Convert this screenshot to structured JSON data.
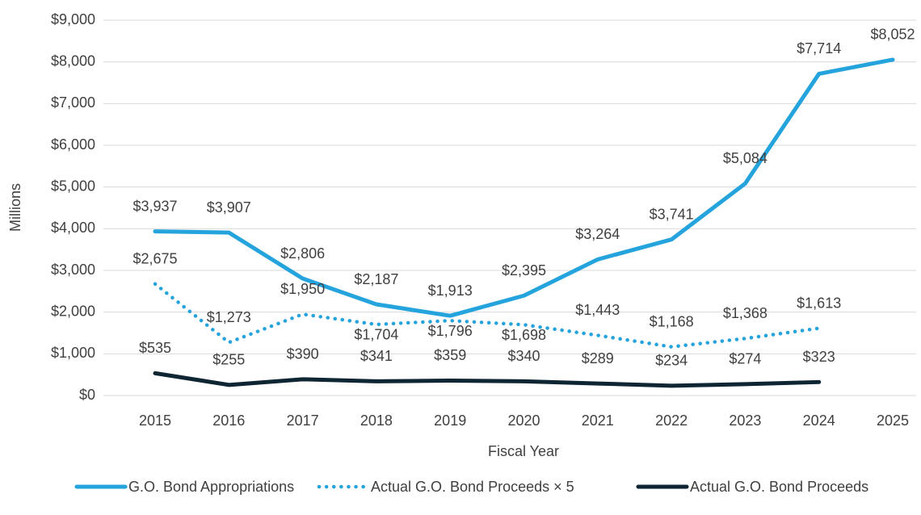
{
  "chart_data": {
    "type": "line",
    "x_label": "Fiscal Year",
    "y_label": "Millions",
    "categories": [
      "2015",
      "2016",
      "2017",
      "2018",
      "2019",
      "2020",
      "2021",
      "2022",
      "2023",
      "2024",
      "2025"
    ],
    "series": [
      {
        "name": "G.O. Bond Appropriations",
        "color": "#24a3dc",
        "dash": "solid",
        "values": [
          3937,
          3907,
          2806,
          2187,
          1913,
          2395,
          3264,
          3741,
          5084,
          7714,
          8052
        ],
        "value_labels": [
          "$3,937",
          "$3,907",
          "$2,806",
          "$2,187",
          "$1,913",
          "$2,395",
          "$3,264",
          "$3,741",
          "$5,084",
          "$7,714",
          "$8,052"
        ]
      },
      {
        "name": "Actual G.O. Bond Proceeds × 5",
        "color": "#24a3dc",
        "dash": "dotted",
        "values": [
          2675,
          1273,
          1950,
          1704,
          1796,
          1698,
          1443,
          1168,
          1368,
          1613,
          null
        ],
        "value_labels": [
          "$2,675",
          "$1,273",
          "$1,950",
          "$1,704",
          "$1,796",
          "$1,698",
          "$1,443",
          "$1,168",
          "$1,368",
          "$1,613",
          null
        ]
      },
      {
        "name": "Actual G.O. Bond Proceeds",
        "color": "#0e2533",
        "dash": "solid",
        "values": [
          535,
          255,
          390,
          341,
          359,
          340,
          289,
          234,
          274,
          323,
          null
        ],
        "value_labels": [
          "$535",
          "$255",
          "$390",
          "$341",
          "$359",
          "$340",
          "$289",
          "$234",
          "$274",
          "$323",
          null
        ]
      }
    ],
    "ylim": [
      0,
      9000
    ],
    "yticks": [
      {
        "value": 0,
        "label": "$0"
      },
      {
        "value": 1000,
        "label": "$1,000"
      },
      {
        "value": 2000,
        "label": "$2,000"
      },
      {
        "value": 3000,
        "label": "$3,000"
      },
      {
        "value": 4000,
        "label": "$4,000"
      },
      {
        "value": 5000,
        "label": "$5,000"
      },
      {
        "value": 6000,
        "label": "$6,000"
      },
      {
        "value": 7000,
        "label": "$7,000"
      },
      {
        "value": 8000,
        "label": "$8,000"
      },
      {
        "value": 9000,
        "label": "$9,000"
      }
    ],
    "grid": true,
    "legend": "bottom"
  }
}
